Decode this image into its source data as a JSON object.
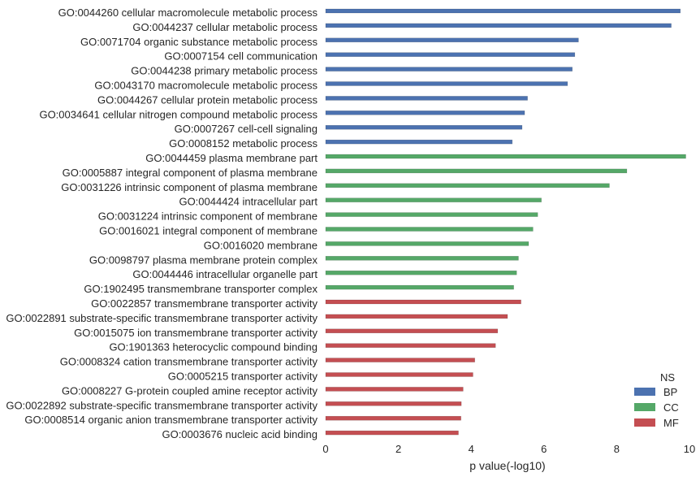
{
  "chart_data": {
    "type": "bar",
    "orientation": "horizontal",
    "xlabel": "p value(-log10)",
    "ylabel": "",
    "xlim": [
      0,
      10
    ],
    "xticks": [
      "0",
      "2",
      "4",
      "6",
      "8",
      "10"
    ],
    "grid": false,
    "legend": {
      "title": "NS",
      "placement": "bottom-right",
      "entries": [
        "BP",
        "CC",
        "MF"
      ]
    },
    "colors": {
      "BP": "#4c72b0",
      "CC": "#55a868",
      "MF": "#c44e52"
    },
    "bars": [
      {
        "label": "GO:0044260 cellular macromolecule metabolic process",
        "group": "BP",
        "value": 9.75
      },
      {
        "label": "GO:0044237 cellular metabolic process",
        "group": "BP",
        "value": 9.5
      },
      {
        "label": "GO:0071704 organic substance metabolic process",
        "group": "BP",
        "value": 6.95
      },
      {
        "label": "GO:0007154 cell communication",
        "group": "BP",
        "value": 6.85
      },
      {
        "label": "GO:0044238 primary metabolic process",
        "group": "BP",
        "value": 6.78
      },
      {
        "label": "GO:0043170 macromolecule metabolic process",
        "group": "BP",
        "value": 6.65
      },
      {
        "label": "GO:0044267 cellular protein metabolic process",
        "group": "BP",
        "value": 5.55
      },
      {
        "label": "GO:0034641 cellular nitrogen compound metabolic process",
        "group": "BP",
        "value": 5.47
      },
      {
        "label": "GO:0007267 cell-cell signaling",
        "group": "BP",
        "value": 5.4
      },
      {
        "label": "GO:0008152 metabolic process",
        "group": "BP",
        "value": 5.13
      },
      {
        "label": "GO:0044459 plasma membrane part",
        "group": "CC",
        "value": 9.9
      },
      {
        "label": "GO:0005887 integral component of plasma membrane",
        "group": "CC",
        "value": 8.28
      },
      {
        "label": "GO:0031226 intrinsic component of plasma membrane",
        "group": "CC",
        "value": 7.8
      },
      {
        "label": "GO:0044424 intracellular part",
        "group": "CC",
        "value": 5.93
      },
      {
        "label": "GO:0031224 intrinsic component of membrane",
        "group": "CC",
        "value": 5.83
      },
      {
        "label": "GO:0016021 integral component of membrane",
        "group": "CC",
        "value": 5.7
      },
      {
        "label": "GO:0016020 membrane",
        "group": "CC",
        "value": 5.58
      },
      {
        "label": "GO:0098797 plasma membrane protein complex",
        "group": "CC",
        "value": 5.3
      },
      {
        "label": "GO:0044446 intracellular organelle part",
        "group": "CC",
        "value": 5.25
      },
      {
        "label": "GO:1902495 transmembrane transporter complex",
        "group": "CC",
        "value": 5.17
      },
      {
        "label": "GO:0022857 transmembrane transporter activity",
        "group": "MF",
        "value": 5.37
      },
      {
        "label": "GO:0022891 substrate-specific transmembrane transporter activity",
        "group": "MF",
        "value": 5.0
      },
      {
        "label": "GO:0015075 ion transmembrane transporter activity",
        "group": "MF",
        "value": 4.73
      },
      {
        "label": "GO:1901363 heterocyclic compound binding",
        "group": "MF",
        "value": 4.67
      },
      {
        "label": "GO:0008324 cation transmembrane transporter activity",
        "group": "MF",
        "value": 4.1
      },
      {
        "label": "GO:0005215 transporter activity",
        "group": "MF",
        "value": 4.05
      },
      {
        "label": "GO:0008227 G-protein coupled amine receptor activity",
        "group": "MF",
        "value": 3.78
      },
      {
        "label": "GO:0022892 substrate-specific transmembrane transporter activity",
        "group": "MF",
        "value": 3.73
      },
      {
        "label": "GO:0008514 organic anion transmembrane transporter activity",
        "group": "MF",
        "value": 3.72
      },
      {
        "label": "GO:0003676 nucleic acid binding",
        "group": "MF",
        "value": 3.65
      }
    ]
  }
}
